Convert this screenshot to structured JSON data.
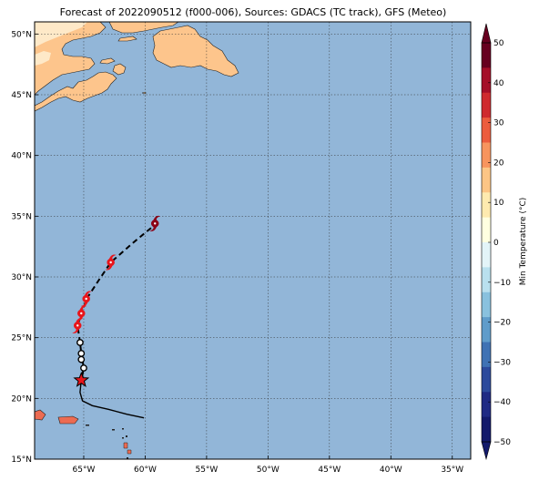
{
  "title": "Forecast of 2022090512 (f000-006), Sources: GDACS (TC track), GFS (Meteo)",
  "map": {
    "lon_range": [
      -69,
      -33.5
    ],
    "lat_range": [
      15,
      51
    ],
    "ocean_color": "#92b6d8",
    "land_color": "#fdc58c",
    "land_light_color": "#fee9c8",
    "lat_ticks": [
      {
        "value": 50,
        "label": "50°N"
      },
      {
        "value": 45,
        "label": "45°N"
      },
      {
        "value": 40,
        "label": "40°N"
      },
      {
        "value": 35,
        "label": "35°N"
      },
      {
        "value": 30,
        "label": "30°N"
      },
      {
        "value": 25,
        "label": "25°N"
      },
      {
        "value": 20,
        "label": "20°N"
      },
      {
        "value": 15,
        "label": "15°N"
      }
    ],
    "lon_ticks": [
      {
        "value": -65,
        "label": "65°W"
      },
      {
        "value": -60,
        "label": "60°W"
      },
      {
        "value": -55,
        "label": "55°W"
      },
      {
        "value": -50,
        "label": "50°W"
      },
      {
        "value": -45,
        "label": "45°W"
      },
      {
        "value": -40,
        "label": "40°W"
      },
      {
        "value": -35,
        "label": "35°W"
      }
    ],
    "grid": true
  },
  "track": {
    "past": [
      [
        -60.1,
        18.4
      ],
      [
        -61.5,
        18.7
      ],
      [
        -63,
        19.1
      ],
      [
        -64.3,
        19.4
      ],
      [
        -65.1,
        19.8
      ],
      [
        -65.3,
        20.5
      ],
      [
        -65.2,
        21.5
      ]
    ],
    "observed": [
      [
        -65.2,
        21.5
      ],
      [
        -65.0,
        22.5
      ],
      [
        -65.2,
        23.7
      ],
      [
        -65.3,
        24.6
      ]
    ],
    "current_position": [
      -65.2,
      21.5
    ],
    "observed_points": [
      [
        -65.0,
        22.5
      ],
      [
        -65.2,
        23.2
      ],
      [
        -65.2,
        23.7
      ],
      [
        -65.3,
        24.6
      ]
    ],
    "forecast": [
      [
        -65.3,
        24.6
      ],
      [
        -65.5,
        26
      ],
      [
        -65.2,
        27
      ],
      [
        -64.7,
        28.3
      ],
      [
        -63.8,
        29.7
      ],
      [
        -62.8,
        31.2
      ],
      [
        -61,
        32.8
      ],
      [
        -59.2,
        34.3
      ]
    ],
    "forecast_symbols": [
      {
        "lon": -65.5,
        "lat": 26.0,
        "color": "#e8151b"
      },
      {
        "lon": -65.2,
        "lat": 27.0,
        "color": "#e8151b"
      },
      {
        "lon": -64.8,
        "lat": 28.2,
        "color": "#e8151b"
      },
      {
        "lon": -62.8,
        "lat": 31.2,
        "color": "#e8151b"
      },
      {
        "lon": -59.2,
        "lat": 34.4,
        "color": "#8b0016"
      }
    ]
  },
  "colorbar": {
    "label": "Min Temperature (°C)",
    "ticks": [
      50,
      40,
      30,
      20,
      10,
      0,
      -10,
      -20,
      -30,
      -40,
      -50
    ],
    "tick_labels": [
      "50",
      "40",
      "30",
      "20",
      "10",
      "0",
      "−10",
      "−20",
      "−30",
      "−40",
      "−50"
    ],
    "colors_top_to_bottom": [
      "#67001f",
      "#a50f28",
      "#cf2a2e",
      "#ec5c3d",
      "#f7945e",
      "#fcc585",
      "#feeaaf",
      "#ffffe0",
      "#e3f4f8",
      "#b9e0ee",
      "#89c1de",
      "#5f9cca",
      "#3f72b4",
      "#2c4a9c",
      "#1f2a84",
      "#131a6b"
    ]
  }
}
